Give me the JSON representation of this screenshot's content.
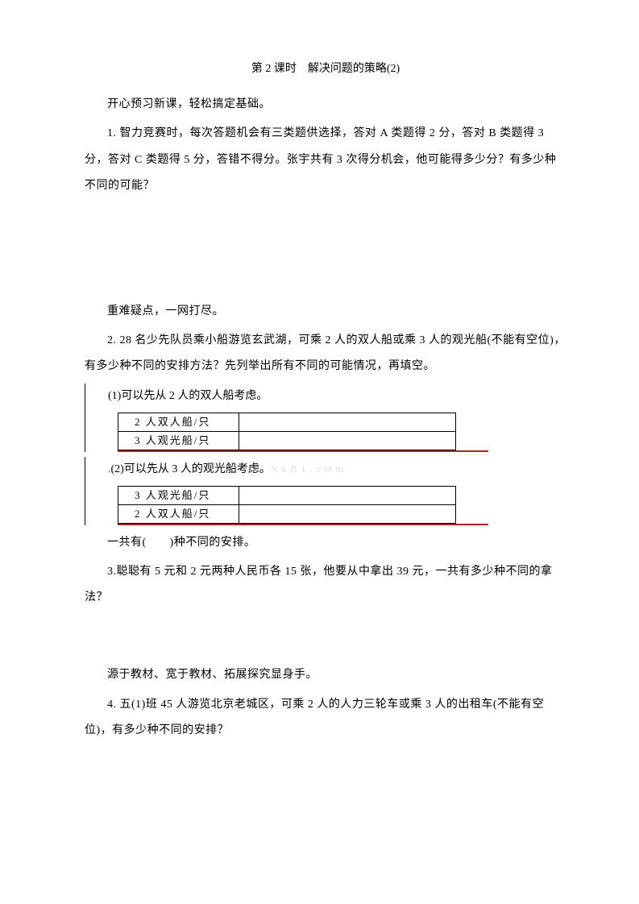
{
  "title": "第 2 课时　解决问题的策略(2)",
  "intro": "开心预习新课，轻松搞定基础。",
  "q1": "1. 智力竞赛时，每次答题机会有三类题供选择，答对 A 类题得 2 分，答对 B 类题得 3 分，答对 C 类题得 5 分，答错不得分。张宇共有 3 次得分机会，他可能得多少分？有多少种不同的可能？",
  "section2_title": "重难疑点，一网打尽。",
  "q2": "2. 28 名少先队员乘小船游览玄武湖，可乘 2 人的双人船或乘 3 人的观光船(不能有空位)，有多少种不同的安排方法？先列举出所有不同的可能情况，再填空。",
  "q2_sub1": "(1)可以先从 2 人的双人船考虑。",
  "table1": {
    "row1": "2 人双人船/只",
    "row2": "3 人观光船/只"
  },
  "q2_sub2_pre": ".",
  "q2_sub2": "(2)可以先从 3 人的观光船考虑。",
  "hidden_text": "X k  B  1  . c  O m",
  "table2": {
    "row1": "3 人观光船/只",
    "row2": "2 人双人船/只"
  },
  "q2_tail": "一共有(　　)种不同的安排。",
  "q3": "3.聪聪有 5 元和 2 元两种人民币各 15 张，他要从中拿出 39 元，一共有多少种不同的拿法？",
  "section3_title": "源于教材、宽于教材、拓展探究显身手。",
  "q4": "4. 五(1)班 45 人游览北京老城区，可乘 2 人的人力三轮车或乘 3 人的出租车(不能有空位)，有多少种不同的安排？",
  "colors": {
    "text": "#000000",
    "red_line": "#b22222",
    "faint": "#dddddd",
    "bg": "#ffffff"
  }
}
